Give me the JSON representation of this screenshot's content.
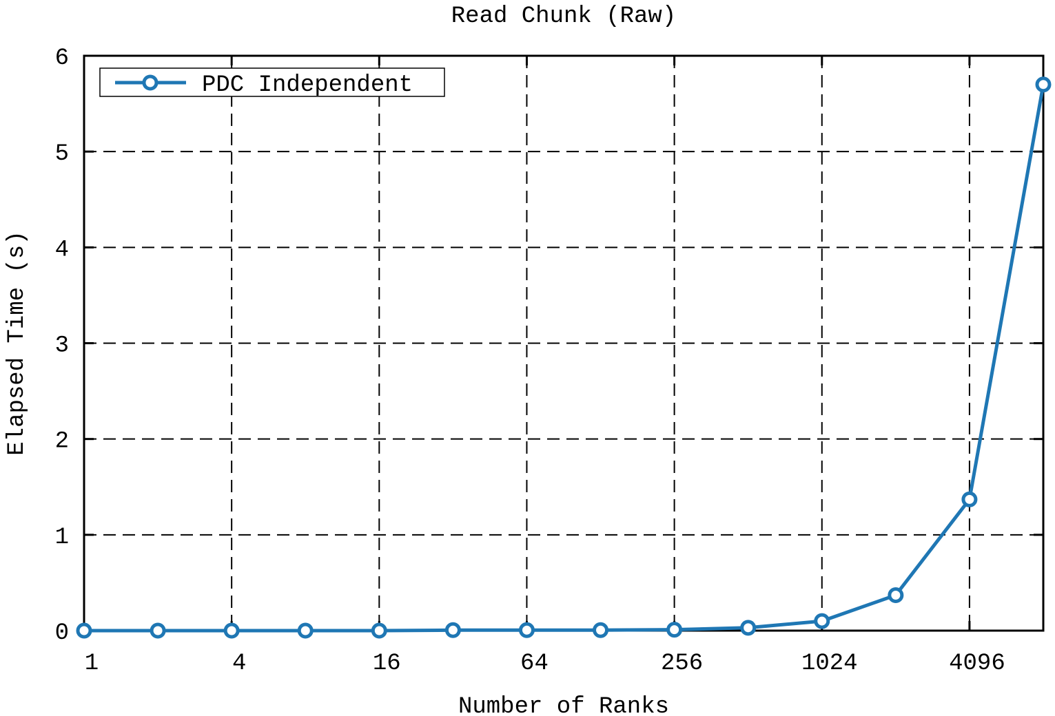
{
  "chart_data": {
    "type": "line",
    "title": "Read Chunk (Raw)",
    "xlabel": "Number of Ranks",
    "ylabel": "Elapsed Time (s)",
    "x_scale": "log2",
    "x_ticks": [
      1,
      4,
      16,
      64,
      256,
      1024,
      4096
    ],
    "y_ticks": [
      0,
      1,
      2,
      3,
      4,
      5,
      6
    ],
    "xlim": [
      1,
      8192
    ],
    "ylim": [
      0,
      6
    ],
    "grid": true,
    "legend_position": "top-left",
    "series": [
      {
        "name": "PDC Independent",
        "color": "#1f77b4",
        "marker": "circle",
        "x": [
          1,
          2,
          4,
          8,
          16,
          32,
          64,
          128,
          256,
          512,
          1024,
          2048,
          4096,
          8192
        ],
        "y": [
          0.0,
          0.0,
          0.0,
          0.0,
          0.0,
          0.005,
          0.005,
          0.005,
          0.01,
          0.03,
          0.1,
          0.37,
          1.37,
          5.7
        ]
      }
    ]
  }
}
